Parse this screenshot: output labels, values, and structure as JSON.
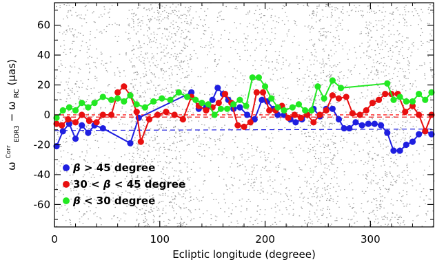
{
  "chart_data": {
    "type": "scatter",
    "xlabel": "Ecliptic longitude (degreee)",
    "ylabel": {
      "main": "ω",
      "corr_sup": "Corr",
      "edr3_sub": "EDR3",
      "minus": " − ω",
      "rc_sub": "RC",
      "unit": " (μas)"
    },
    "xlim": [
      0,
      360
    ],
    "ylim": [
      -75,
      75
    ],
    "x_ticks": [
      0,
      100,
      200,
      300
    ],
    "y_ticks": [
      -60,
      -40,
      -20,
      0,
      20,
      40,
      60
    ],
    "background_scatter_color": "#a0a0a0",
    "zero_line_color": "#ff0000",
    "series": [
      {
        "name": "β > 45 degree",
        "legend_symbol": "β",
        "legend_rest": " > 45 degree",
        "color": "#1f1fe0",
        "x": [
          2,
          8,
          14,
          20,
          26,
          32,
          38,
          46,
          72,
          80,
          130,
          137,
          144,
          150,
          155,
          160,
          165,
          170,
          176,
          183,
          190,
          197,
          202,
          208,
          212,
          218,
          224,
          229,
          235,
          240,
          246,
          252,
          258,
          264,
          270,
          275,
          280,
          286,
          292,
          298,
          304,
          310,
          316,
          322,
          328,
          334,
          340,
          346,
          352,
          358
        ],
        "y": [
          -21,
          -11,
          -6,
          -16,
          -7,
          -12,
          -7,
          -9,
          -19,
          -2,
          15,
          4,
          5,
          10,
          18,
          14,
          10,
          4,
          5,
          0,
          -3,
          10,
          9,
          4,
          0,
          0,
          -3,
          -5,
          -3,
          0,
          4,
          -1,
          4,
          4,
          -3,
          -9,
          -9,
          -5,
          -7,
          -6,
          -6,
          -7,
          -12,
          -24,
          -24,
          -20,
          -18,
          -13,
          -11,
          -13
        ]
      },
      {
        "name": "30 < β < 45 degree",
        "legend_prefix": "30 < ",
        "legend_symbol": "β",
        "legend_rest": " < 45 degree",
        "color": "#e81010",
        "x": [
          2,
          7,
          13,
          20,
          26,
          33,
          40,
          46,
          54,
          60,
          66,
          72,
          78,
          82,
          90,
          98,
          106,
          114,
          122,
          130,
          137,
          144,
          150,
          156,
          162,
          168,
          174,
          180,
          186,
          192,
          198,
          204,
          210,
          216,
          222,
          228,
          234,
          240,
          246,
          252,
          258,
          264,
          270,
          277,
          283,
          290,
          296,
          302,
          308,
          314,
          320,
          326,
          333,
          340,
          346,
          352,
          358
        ],
        "y": [
          -6,
          -7,
          -3,
          -5,
          0,
          -4,
          -5,
          0,
          0,
          15,
          19,
          13,
          2,
          -18,
          -3,
          0,
          2,
          0,
          -3,
          12,
          6,
          3,
          5,
          8,
          14,
          8,
          -7,
          -8,
          -5,
          15,
          15,
          3,
          3,
          6,
          -2,
          0,
          -2,
          0,
          -5,
          0,
          3,
          13,
          11,
          12,
          1,
          0,
          3,
          8,
          10,
          14,
          14,
          14,
          2,
          6,
          0,
          -11,
          0
        ]
      },
      {
        "name": "β < 30 degree",
        "legend_symbol": "β",
        "legend_rest": " < 30 degree",
        "color": "#22e822",
        "x": [
          2,
          8,
          14,
          20,
          26,
          32,
          38,
          46,
          54,
          60,
          66,
          72,
          78,
          86,
          94,
          102,
          110,
          118,
          126,
          134,
          140,
          146,
          152,
          158,
          164,
          170,
          176,
          182,
          188,
          194,
          200,
          206,
          212,
          218,
          226,
          232,
          238,
          244,
          250,
          256,
          264,
          272,
          316,
          322,
          328,
          334,
          340,
          346,
          352,
          358
        ],
        "y": [
          -2,
          3,
          5,
          3,
          8,
          5,
          8,
          12,
          10,
          11,
          9,
          13,
          7,
          5,
          9,
          11,
          10,
          15,
          12,
          10,
          8,
          7,
          0,
          4,
          4,
          7,
          10,
          6,
          25,
          25,
          19,
          11,
          5,
          3,
          5,
          7,
          3,
          3,
          19,
          11,
          23,
          18,
          21,
          10,
          12,
          9,
          9,
          14,
          10,
          15
        ]
      }
    ],
    "trend_lines": [
      {
        "series": 0,
        "color": "#1f1fe0",
        "x": [
          0,
          360
        ],
        "y": [
          -10.5,
          -9.5
        ]
      },
      {
        "series": 1,
        "color": "#e81010",
        "x": [
          0,
          360
        ],
        "y": [
          -1.5,
          -1.5
        ]
      }
    ],
    "legend_placement": "bottom-left",
    "grid": false
  }
}
